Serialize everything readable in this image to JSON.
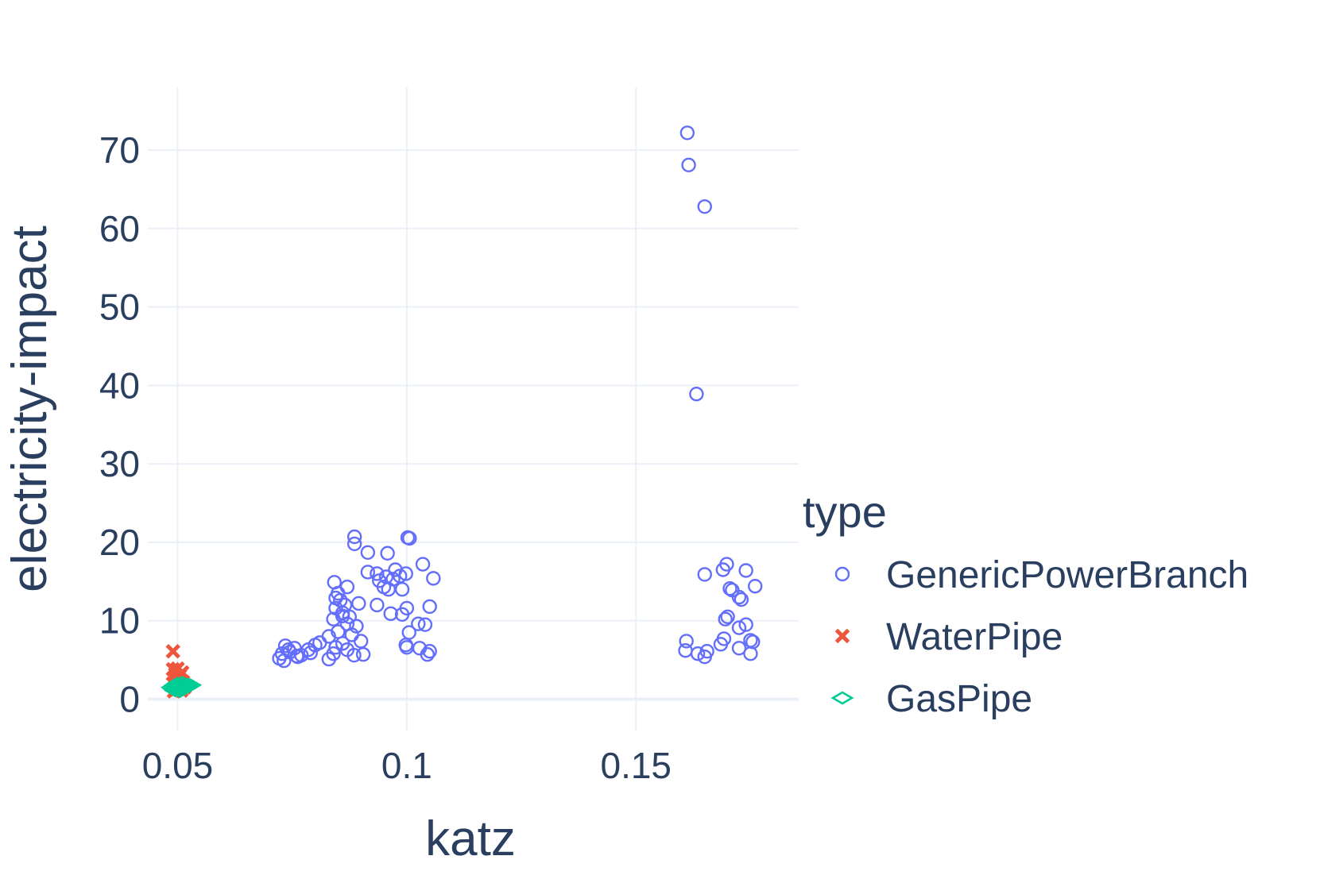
{
  "chart_data": {
    "type": "scatter",
    "xlabel": "katz",
    "ylabel": "electricity-impact",
    "xlim": [
      0.0435,
      0.1855
    ],
    "ylim": [
      -4,
      78
    ],
    "xticks": [
      0.05,
      0.1,
      0.15
    ],
    "xtick_labels": [
      "0.05",
      "0.1",
      "0.15"
    ],
    "yticks": [
      0,
      10,
      20,
      30,
      40,
      50,
      60,
      70
    ],
    "ytick_labels": [
      "0",
      "10",
      "20",
      "30",
      "40",
      "50",
      "60",
      "70"
    ],
    "grid": true,
    "legend": {
      "title": "type",
      "placement": "right"
    },
    "series": [
      {
        "name": "GenericPowerBranch",
        "marker": "circle-open",
        "color": "#636efa",
        "points": [
          [
            0.1612,
            72.2
          ],
          [
            0.1615,
            68.1
          ],
          [
            0.165,
            62.8
          ],
          [
            0.1632,
            38.9
          ],
          [
            0.0886,
            20.7
          ],
          [
            0.0886,
            19.8
          ],
          [
            0.1002,
            20.6
          ],
          [
            0.1006,
            20.5
          ],
          [
            0.0915,
            18.7
          ],
          [
            0.0958,
            18.6
          ],
          [
            0.1035,
            17.2
          ],
          [
            0.1058,
            15.4
          ],
          [
            0.0915,
            16.2
          ],
          [
            0.0935,
            16.0
          ],
          [
            0.094,
            15.1
          ],
          [
            0.0955,
            15.6
          ],
          [
            0.097,
            15.3
          ],
          [
            0.0975,
            16.5
          ],
          [
            0.0985,
            15.7
          ],
          [
            0.0998,
            16.0
          ],
          [
            0.095,
            14.3
          ],
          [
            0.096,
            14.0
          ],
          [
            0.099,
            14.0
          ],
          [
            0.087,
            14.3
          ],
          [
            0.0842,
            14.9
          ],
          [
            0.0935,
            12.0
          ],
          [
            0.0895,
            12.2
          ],
          [
            0.1,
            11.6
          ],
          [
            0.105,
            11.8
          ],
          [
            0.0965,
            10.9
          ],
          [
            0.099,
            10.8
          ],
          [
            0.1025,
            9.6
          ],
          [
            0.104,
            9.5
          ],
          [
            0.1005,
            8.5
          ],
          [
            0.0998,
            6.9
          ],
          [
            0.1,
            6.6
          ],
          [
            0.1028,
            6.5
          ],
          [
            0.1045,
            5.7
          ],
          [
            0.105,
            6.1
          ],
          [
            0.09,
            7.4
          ],
          [
            0.0905,
            5.7
          ],
          [
            0.085,
            13.5
          ],
          [
            0.0855,
            12.6
          ],
          [
            0.0845,
            11.6
          ],
          [
            0.086,
            11.0
          ],
          [
            0.084,
            10.2
          ],
          [
            0.087,
            9.6
          ],
          [
            0.085,
            8.6
          ],
          [
            0.083,
            8.0
          ],
          [
            0.088,
            8.2
          ],
          [
            0.089,
            9.3
          ],
          [
            0.086,
            7.1
          ],
          [
            0.0845,
            6.6
          ],
          [
            0.087,
            6.3
          ],
          [
            0.084,
            5.8
          ],
          [
            0.0885,
            5.6
          ],
          [
            0.083,
            5.1
          ],
          [
            0.086,
            10.6
          ],
          [
            0.0845,
            12.9
          ],
          [
            0.0865,
            12.0
          ],
          [
            0.0875,
            10.5
          ],
          [
            0.081,
            7.2
          ],
          [
            0.08,
            6.9
          ],
          [
            0.0785,
            6.3
          ],
          [
            0.079,
            5.9
          ],
          [
            0.077,
            5.6
          ],
          [
            0.076,
            5.5
          ],
          [
            0.0745,
            6.0
          ],
          [
            0.0735,
            6.8
          ],
          [
            0.0742,
            6.3
          ],
          [
            0.0728,
            5.8
          ],
          [
            0.0722,
            5.2
          ],
          [
            0.0732,
            4.9
          ],
          [
            0.0755,
            6.5
          ],
          [
            0.0762,
            5.4
          ],
          [
            0.1698,
            17.2
          ],
          [
            0.169,
            16.5
          ],
          [
            0.174,
            16.4
          ],
          [
            0.165,
            15.9
          ],
          [
            0.176,
            14.4
          ],
          [
            0.1705,
            14.1
          ],
          [
            0.171,
            13.9
          ],
          [
            0.1725,
            13.0
          ],
          [
            0.173,
            12.7
          ],
          [
            0.17,
            10.5
          ],
          [
            0.1695,
            10.2
          ],
          [
            0.174,
            9.5
          ],
          [
            0.1725,
            9.1
          ],
          [
            0.175,
            7.5
          ],
          [
            0.1755,
            7.3
          ],
          [
            0.1692,
            7.7
          ],
          [
            0.1685,
            7.0
          ],
          [
            0.161,
            7.4
          ],
          [
            0.1608,
            6.2
          ],
          [
            0.1635,
            5.8
          ],
          [
            0.1655,
            6.1
          ],
          [
            0.165,
            5.4
          ],
          [
            0.1725,
            6.5
          ],
          [
            0.175,
            5.8
          ]
        ]
      },
      {
        "name": "WaterPipe",
        "marker": "x",
        "color": "#ef553b",
        "points": [
          [
            0.049,
            6.1
          ],
          [
            0.049,
            3.8
          ],
          [
            0.0495,
            3.2
          ],
          [
            0.05,
            3.9
          ],
          [
            0.0505,
            3.0
          ],
          [
            0.051,
            3.4
          ],
          [
            0.0493,
            2.6
          ],
          [
            0.05,
            2.4
          ],
          [
            0.049,
            2.0
          ],
          [
            0.0503,
            1.8
          ],
          [
            0.0512,
            2.2
          ],
          [
            0.0497,
            1.2
          ],
          [
            0.0492,
            1.0
          ],
          [
            0.0508,
            1.1
          ],
          [
            0.0515,
            1.5
          ]
        ]
      },
      {
        "name": "GasPipe",
        "marker": "diamond-open",
        "color": "#00cc96",
        "points": [
          [
            0.0488,
            1.5
          ],
          [
            0.0492,
            1.3
          ],
          [
            0.0495,
            1.8
          ],
          [
            0.0498,
            1.4
          ],
          [
            0.05,
            1.6
          ],
          [
            0.0503,
            1.2
          ],
          [
            0.0505,
            1.9
          ],
          [
            0.0508,
            1.5
          ],
          [
            0.051,
            1.7
          ],
          [
            0.0512,
            1.3
          ],
          [
            0.0515,
            1.6
          ],
          [
            0.0518,
            1.8
          ],
          [
            0.052,
            1.5
          ],
          [
            0.0522,
            1.9
          ],
          [
            0.0525,
            1.7
          ],
          [
            0.0528,
            1.8
          ],
          [
            0.0495,
            1.1
          ],
          [
            0.0505,
            1.0
          ],
          [
            0.05,
            2.0
          ],
          [
            0.051,
            2.1
          ]
        ]
      }
    ]
  }
}
